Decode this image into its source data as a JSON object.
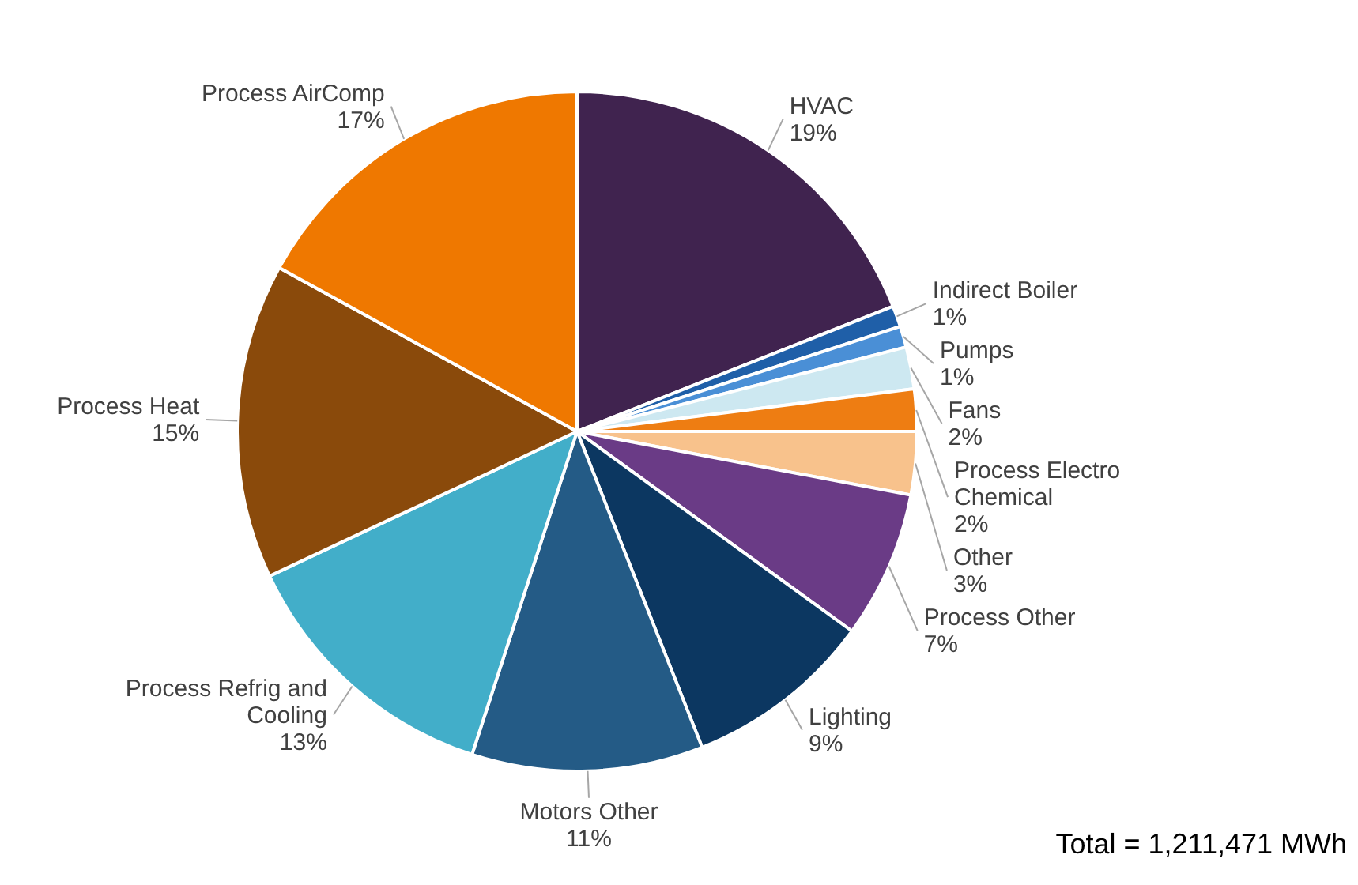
{
  "chart_data": {
    "type": "pie",
    "categories": [
      "HVAC",
      "Indirect Boiler",
      "Pumps",
      "Fans",
      "Process Electro Chemical",
      "Other",
      "Process Other",
      "Lighting",
      "Motors Other",
      "Process Refrig and Cooling",
      "Process Heat",
      "Process AirComp"
    ],
    "values": [
      19,
      1,
      1,
      2,
      2,
      3,
      7,
      9,
      11,
      13,
      15,
      17
    ],
    "value_labels": [
      "19%",
      "1%",
      "1%",
      "2%",
      "2%",
      "3%",
      "7%",
      "9%",
      "11%",
      "13%",
      "15%",
      "17%"
    ],
    "colors": [
      "#40234f",
      "#1f5fa8",
      "#4a8fd6",
      "#cde8f1",
      "#ee7d12",
      "#f8c28c",
      "#6a3b86",
      "#0c3761",
      "#245b86",
      "#42aec9",
      "#8a4a0b",
      "#ef7800"
    ],
    "annotations": [
      "Total =  1,211,471 MWh"
    ]
  }
}
